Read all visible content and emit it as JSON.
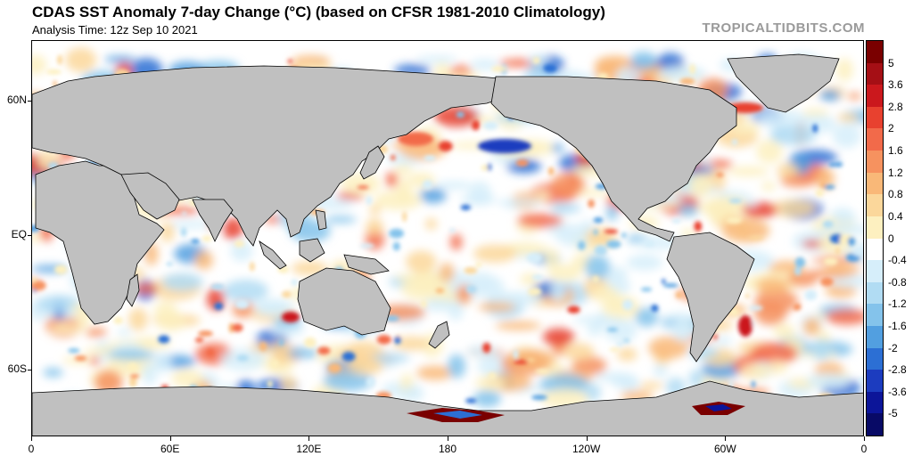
{
  "header": {
    "title": "CDAS SST Anomaly 7-day Change (°C) (based on CFSR 1981-2010 Climatology)",
    "analysis_time": "Analysis Time: 12z Sep 10 2021",
    "watermark": "TROPICALTIDBITS.COM"
  },
  "map": {
    "projection": "equirectangular",
    "land_color": "#c0c0c0",
    "ocean_color": "#ffffff",
    "lat_labels": [
      "60N",
      "EQ",
      "60S"
    ],
    "lat_values": [
      60,
      0,
      -60
    ],
    "lon_labels": [
      "0",
      "60E",
      "120E",
      "180",
      "120W",
      "60W",
      "0"
    ],
    "lon_values": [
      0,
      60,
      120,
      180,
      240,
      300,
      360
    ]
  },
  "colorbar": {
    "labels": [
      "5",
      "3.6",
      "2.8",
      "2",
      "1.6",
      "1.2",
      "0.8",
      "0.4",
      "0",
      "-0.4",
      "-0.8",
      "-1.2",
      "-1.6",
      "-2",
      "-2.8",
      "-3.6",
      "-5"
    ],
    "colors": [
      "#7a0000",
      "#a50f15",
      "#cb181d",
      "#e8412f",
      "#f26a4a",
      "#f6925f",
      "#f9b878",
      "#fbd79b",
      "#fdf0c0",
      "#ffffff",
      "#d6eefa",
      "#b1dcf3",
      "#84c3eb",
      "#529fe0",
      "#2c6fd4",
      "#1c3cbf",
      "#0c1599",
      "#080a66"
    ]
  }
}
